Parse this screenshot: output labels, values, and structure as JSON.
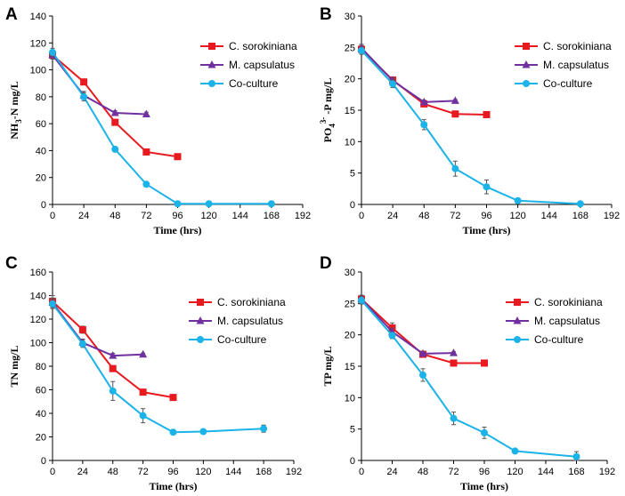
{
  "colors": {
    "c_sorokiniana": "#e8191f",
    "m_capsulatus": "#7030a0",
    "co_culture": "#1bb3e8",
    "axis": "#000000",
    "errorbar": "#555555"
  },
  "series_names": [
    "C. sorokiniana",
    "M. capsulatus",
    "Co-culture"
  ],
  "chart_data": [
    {
      "panel": "A",
      "type": "line",
      "xlabel": "Time (hrs)",
      "ylabel": "NH3-N mg/L",
      "ylabel_parts": [
        "NH",
        "3",
        "-N mg/L"
      ],
      "xlim": [
        0,
        192
      ],
      "ylim": [
        0,
        140
      ],
      "xticks": [
        0,
        24,
        48,
        72,
        96,
        120,
        144,
        168,
        192
      ],
      "yticks": [
        0,
        20,
        40,
        60,
        80,
        100,
        120,
        140
      ],
      "series": [
        {
          "name": "C. sorokiniana",
          "marker": "square",
          "x": [
            0,
            24,
            48,
            72,
            96
          ],
          "values": [
            111,
            91,
            61,
            39,
            35.5
          ],
          "err": [
            3,
            2,
            1.5,
            1.5,
            2
          ]
        },
        {
          "name": "M. capsulatus",
          "marker": "triangle",
          "x": [
            0,
            24,
            48,
            72
          ],
          "values": [
            111,
            81,
            68,
            67
          ],
          "err": [
            3,
            3,
            1.5,
            1.5
          ]
        },
        {
          "name": "Co-culture",
          "marker": "circle",
          "x": [
            0,
            24,
            48,
            72,
            96,
            120,
            168
          ],
          "values": [
            113,
            80,
            41,
            15,
            0.5,
            0.5,
            0.5
          ],
          "err": [
            3,
            3,
            1,
            1,
            0.3,
            0.3,
            0.3
          ]
        }
      ]
    },
    {
      "panel": "B",
      "type": "line",
      "xlabel": "Time (hrs)",
      "ylabel": "PO43--P mg/L",
      "ylabel_parts": [
        "PO",
        "4",
        "3-",
        " -P mg/L"
      ],
      "xlim": [
        0,
        192
      ],
      "ylim": [
        0,
        30
      ],
      "xticks": [
        0,
        24,
        48,
        72,
        96,
        120,
        144,
        168,
        192
      ],
      "yticks": [
        0,
        5,
        10,
        15,
        20,
        25,
        30
      ],
      "series": [
        {
          "name": "C. sorokiniana",
          "marker": "square",
          "x": [
            0,
            24,
            48,
            72,
            96
          ],
          "values": [
            24.7,
            19.8,
            16,
            14.4,
            14.3
          ],
          "err": [
            0.6,
            0.5,
            0.3,
            0.2,
            0.2
          ]
        },
        {
          "name": "M. capsulatus",
          "marker": "triangle",
          "x": [
            0,
            24,
            48,
            72
          ],
          "values": [
            24.9,
            19.7,
            16.3,
            16.5
          ],
          "err": [
            0.6,
            0.5,
            0.3,
            0.2
          ]
        },
        {
          "name": "Co-culture",
          "marker": "circle",
          "x": [
            0,
            24,
            48,
            72,
            96,
            120,
            168
          ],
          "values": [
            24.5,
            19.2,
            12.7,
            5.7,
            2.8,
            0.6,
            0.1
          ],
          "err": [
            0.6,
            0.6,
            0.8,
            1.2,
            1.1,
            0.2,
            0.2
          ]
        }
      ]
    },
    {
      "panel": "C",
      "type": "line",
      "xlabel": "Time (hrs)",
      "ylabel": "TN mg/L",
      "ylabel_parts": [
        "TN mg/L"
      ],
      "xlim": [
        0,
        192
      ],
      "ylim": [
        0,
        160
      ],
      "xticks": [
        0,
        24,
        48,
        72,
        96,
        120,
        144,
        168,
        192
      ],
      "yticks": [
        0,
        20,
        40,
        60,
        80,
        100,
        120,
        140,
        160
      ],
      "series": [
        {
          "name": "C. sorokiniana",
          "marker": "square",
          "x": [
            0,
            24,
            48,
            72,
            96
          ],
          "values": [
            135,
            111,
            78,
            58,
            53.5
          ],
          "err": [
            5,
            3,
            2,
            1.5,
            1.5
          ]
        },
        {
          "name": "M. capsulatus",
          "marker": "triangle",
          "x": [
            0,
            24,
            48,
            72
          ],
          "values": [
            134,
            100,
            89,
            90
          ],
          "err": [
            4,
            3,
            2,
            1
          ]
        },
        {
          "name": "Co-culture",
          "marker": "circle",
          "x": [
            0,
            24,
            48,
            72,
            96,
            120,
            168
          ],
          "values": [
            133,
            99,
            59,
            38,
            24,
            24.5,
            27
          ],
          "err": [
            4,
            3,
            8,
            6,
            2,
            1.5,
            3
          ]
        }
      ]
    },
    {
      "panel": "D",
      "type": "line",
      "xlabel": "Time (hrs)",
      "ylabel": "TP mg/L",
      "ylabel_parts": [
        "TP mg/L"
      ],
      "xlim": [
        0,
        192
      ],
      "ylim": [
        0,
        30
      ],
      "xticks": [
        0,
        24,
        48,
        72,
        96,
        120,
        144,
        168,
        192
      ],
      "yticks": [
        0,
        5,
        10,
        15,
        20,
        25,
        30
      ],
      "series": [
        {
          "name": "C. sorokiniana",
          "marker": "square",
          "x": [
            0,
            24,
            48,
            72,
            96
          ],
          "values": [
            25.7,
            21.1,
            16.9,
            15.5,
            15.5
          ],
          "err": [
            0.6,
            0.8,
            0.3,
            0.2,
            0.2
          ]
        },
        {
          "name": "M. capsulatus",
          "marker": "triangle",
          "x": [
            0,
            24,
            48,
            72
          ],
          "values": [
            25.7,
            20.5,
            17,
            17.1
          ],
          "err": [
            0.6,
            0.6,
            0.3,
            0.2
          ]
        },
        {
          "name": "Co-culture",
          "marker": "circle",
          "x": [
            0,
            24,
            48,
            72,
            96,
            120,
            168
          ],
          "values": [
            25.5,
            19.9,
            13.6,
            6.7,
            4.4,
            1.5,
            0.6
          ],
          "err": [
            0.6,
            0.5,
            1.0,
            1.0,
            0.9,
            0.2,
            0.8
          ]
        }
      ]
    }
  ]
}
